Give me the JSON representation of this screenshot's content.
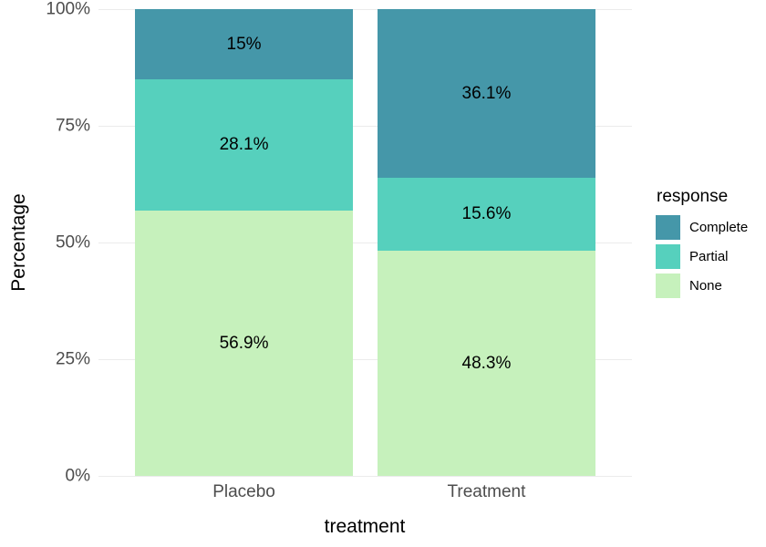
{
  "chart_data": {
    "type": "bar",
    "stacked": true,
    "percent_scale": true,
    "xlabel": "treatment",
    "ylabel": "Percentage",
    "categories": [
      "Placebo",
      "Treatment"
    ],
    "series": [
      {
        "name": "Complete",
        "color": "#4597a9",
        "values": [
          15,
          36.1
        ],
        "labels": [
          "15%",
          "36.1%"
        ]
      },
      {
        "name": "Partial",
        "color": "#56d0bd",
        "values": [
          28.1,
          15.6
        ],
        "labels": [
          "28.1%",
          "15.6%"
        ]
      },
      {
        "name": "None",
        "color": "#c6f1bc",
        "values": [
          56.9,
          48.3
        ],
        "labels": [
          "56.9%",
          "48.3%"
        ]
      }
    ],
    "y_ticks": [
      "0%",
      "25%",
      "50%",
      "75%",
      "100%"
    ],
    "y_tick_values": [
      0,
      25,
      50,
      75,
      100
    ],
    "ylim": [
      0,
      100
    ],
    "grid": "major-horizontal",
    "gridline_color": "#ebebeb",
    "tick_label_color": "#4d4d4d",
    "value_label_color": "#000000",
    "legend": {
      "title": "response",
      "position": "right",
      "entries": [
        "Complete",
        "Partial",
        "None"
      ]
    }
  }
}
